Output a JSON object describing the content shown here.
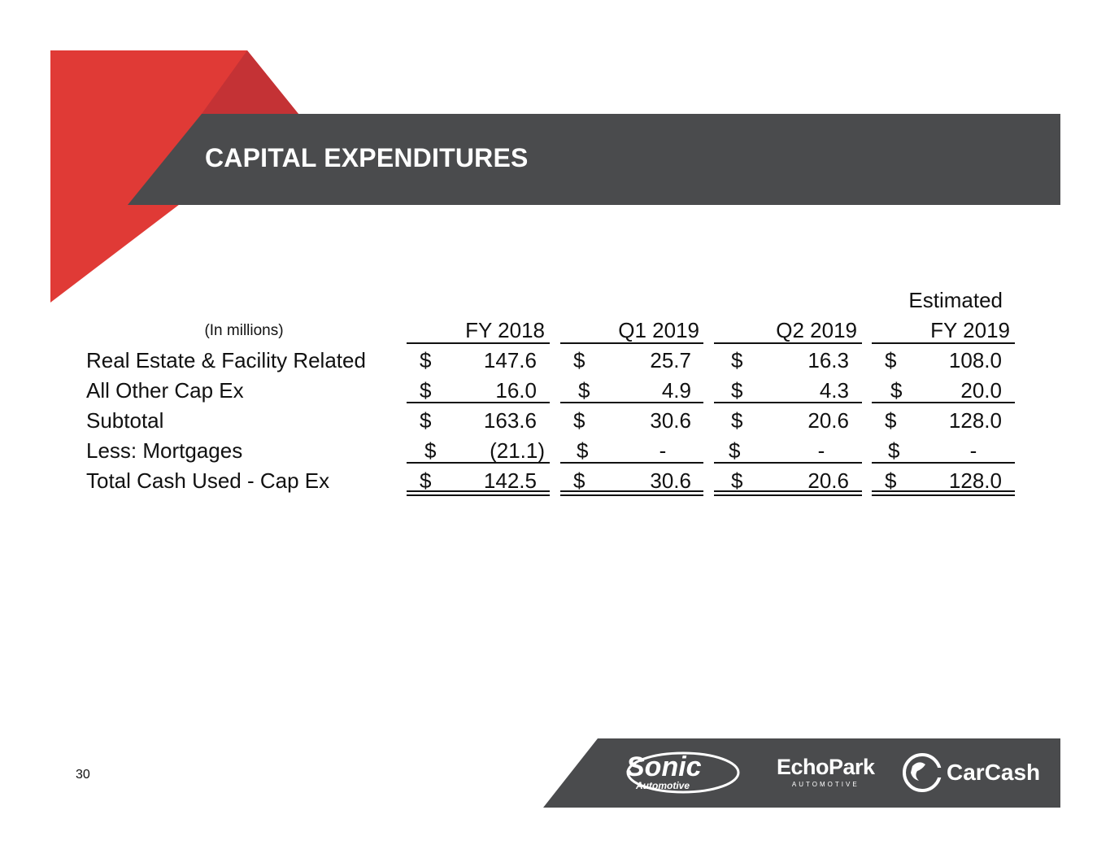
{
  "slide": {
    "title": "CAPITAL EXPENDITURES",
    "page_number": "30",
    "colors": {
      "accent_red": "#e03a36",
      "accent_red_dark": "#c43235",
      "banner": "#4a4b4d"
    }
  },
  "table": {
    "unit_label": "(In millions)",
    "columns": [
      {
        "top": "",
        "label": "FY 2018"
      },
      {
        "top": "",
        "label": "Q1 2019"
      },
      {
        "top": "",
        "label": "Q2 2019"
      },
      {
        "top": "Estimated",
        "label": "FY 2019"
      }
    ],
    "currency": "$",
    "rows": [
      {
        "label": "Real Estate & Facility Related",
        "values": [
          "147.6",
          "25.7",
          "16.3",
          "108.0"
        ]
      },
      {
        "label": "All Other Cap Ex",
        "values": [
          "16.0",
          "4.9",
          "4.3",
          "20.0"
        ]
      },
      {
        "label": "Subtotal",
        "values": [
          "163.6",
          "30.6",
          "20.6",
          "128.0"
        ]
      },
      {
        "label": "Less: Mortgages",
        "values": [
          "(21.1)",
          "-",
          "-",
          "-"
        ]
      },
      {
        "label": "Total Cash Used - Cap Ex",
        "values": [
          "142.5",
          "30.6",
          "20.6",
          "128.0"
        ]
      }
    ]
  },
  "footer": {
    "logos": [
      {
        "name": "sonic-automotive-logo",
        "text": "Sonic",
        "subtext": "Automotive"
      },
      {
        "name": "echopark-logo",
        "text": "EchoPark",
        "subtext": "AUTOMOTIVE"
      },
      {
        "name": "carcash-logo",
        "text": "CarCash"
      }
    ]
  }
}
